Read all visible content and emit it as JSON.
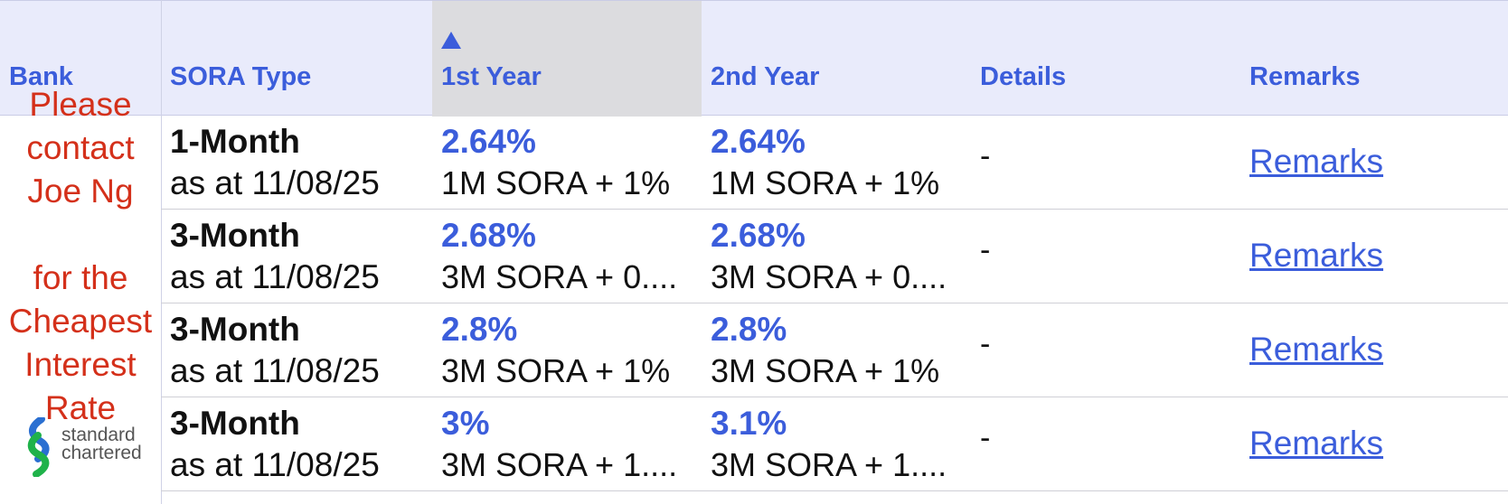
{
  "header": {
    "columns": [
      "Bank",
      "SORA Type",
      "1st Year",
      "2nd Year",
      "Details",
      "Remarks"
    ],
    "sorted_column": "1st Year",
    "sort_direction": "ascending"
  },
  "bank": {
    "promo_text": "Please\ncontact\nJoe Ng\n\nfor the\nCheapest\nInterest\nRate",
    "logo_text_line1": "standard",
    "logo_text_line2": "chartered"
  },
  "rows": [
    {
      "type": "1-Month",
      "as_at": "as at 11/08/25",
      "y1_rate": "2.64%",
      "y1_formula": "1M SORA + 1%",
      "y2_rate": "2.64%",
      "y2_formula": "1M SORA + 1%",
      "details": "-",
      "remarks": "Remarks"
    },
    {
      "type": "3-Month",
      "as_at": "as at 11/08/25",
      "y1_rate": "2.68%",
      "y1_formula": "3M SORA + 0....",
      "y2_rate": "2.68%",
      "y2_formula": "3M SORA + 0....",
      "details": "-",
      "remarks": "Remarks"
    },
    {
      "type": "3-Month",
      "as_at": "as at 11/08/25",
      "y1_rate": "2.8%",
      "y1_formula": "3M SORA + 1%",
      "y2_rate": "2.8%",
      "y2_formula": "3M SORA + 1%",
      "details": "-",
      "remarks": "Remarks"
    },
    {
      "type": "3-Month",
      "as_at": "as at 11/08/25",
      "y1_rate": "3%",
      "y1_formula": "3M SORA + 1....",
      "y2_rate": "3.1%",
      "y2_formula": "3M SORA + 1....",
      "details": "-",
      "remarks": "Remarks"
    }
  ],
  "colors": {
    "accent": "#3b5ddb",
    "header_bg": "#e9ebfb",
    "sorted_header_bg": "#dcdcdf",
    "promo_text": "#d4301a",
    "logo_blue": "#2a6fd1",
    "logo_green": "#1fb24a"
  }
}
